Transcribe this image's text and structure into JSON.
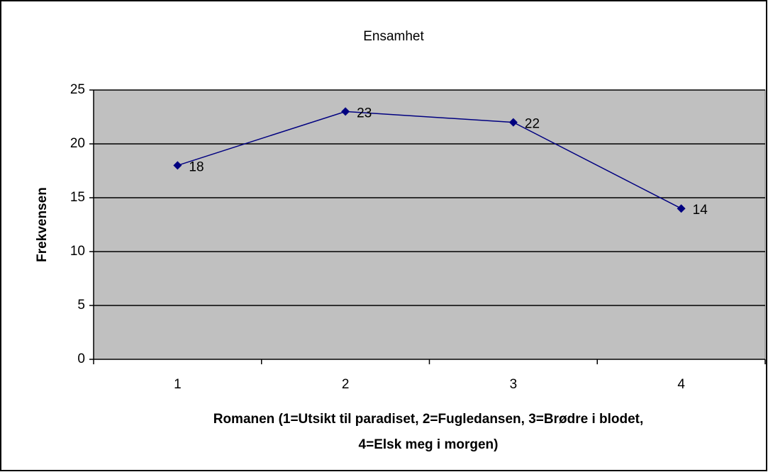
{
  "chart_data": {
    "type": "line",
    "title": "Ensamhet",
    "xlabel": [
      "Romanen (1=Utsikt til paradiset, 2=Fugledansen, 3=Brødre i blodet,",
      "4=Elsk meg i morgen)"
    ],
    "ylabel": "Frekvensen",
    "categories": [
      "1",
      "2",
      "3",
      "4"
    ],
    "values": [
      18,
      23,
      22,
      14
    ],
    "color": "#000080",
    "ylim": [
      0,
      25
    ],
    "yticks": [
      0,
      5,
      10,
      15,
      20,
      25
    ],
    "grid": true
  }
}
